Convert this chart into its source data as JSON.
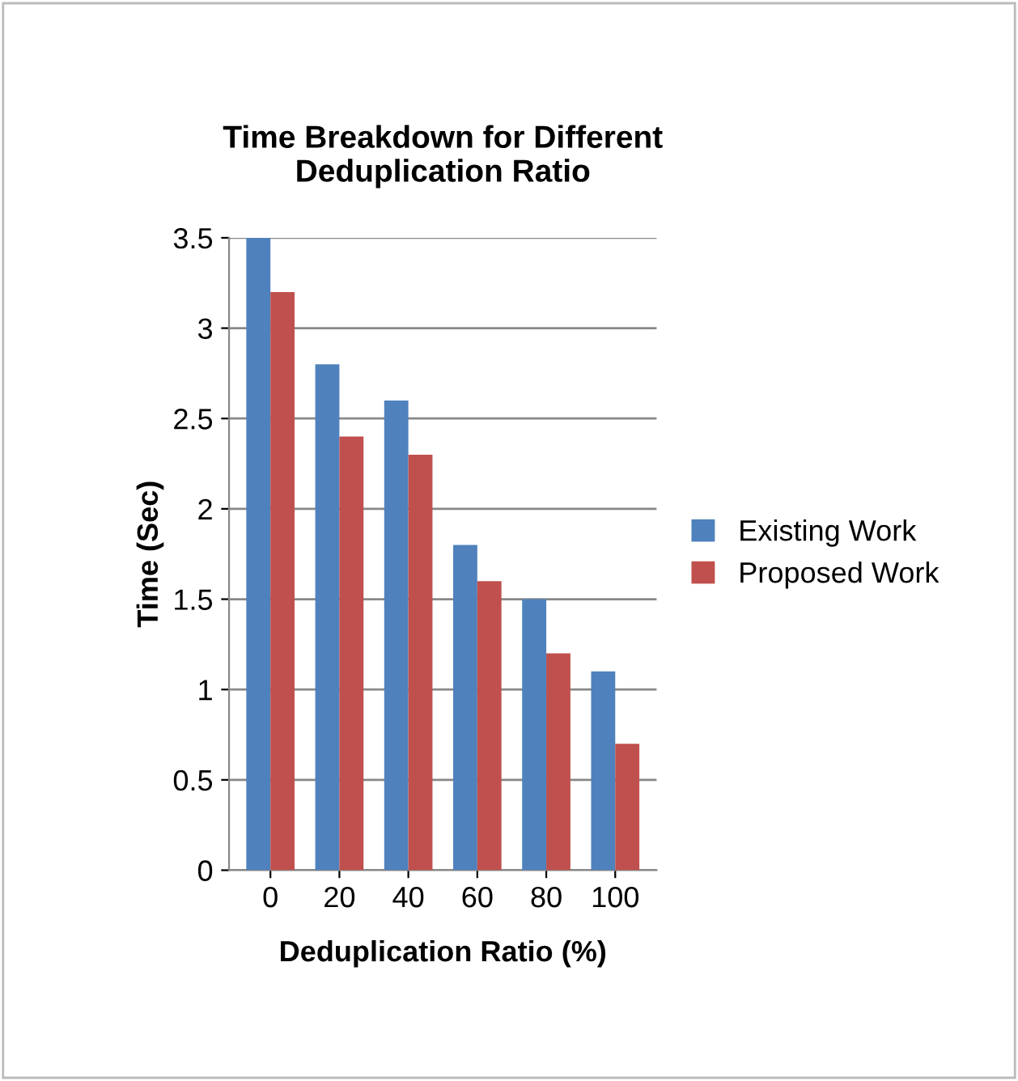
{
  "chart_data": {
    "type": "bar",
    "title": "Time Breakdown for Different\nDeduplication Ratio",
    "xlabel": "Deduplication Ratio (%)",
    "ylabel": "Time (Sec)",
    "categories": [
      "0",
      "20",
      "40",
      "60",
      "80",
      "100"
    ],
    "series": [
      {
        "name": "Existing Work",
        "color": "#4f81bd",
        "values": [
          3.5,
          2.8,
          2.6,
          1.8,
          1.5,
          1.1
        ]
      },
      {
        "name": "Proposed Work",
        "color": "#c0504d",
        "values": [
          3.2,
          2.4,
          2.3,
          1.6,
          1.2,
          0.7
        ]
      }
    ],
    "ylim": [
      0,
      3.5
    ],
    "yticks": [
      0,
      0.5,
      1,
      1.5,
      2,
      2.5,
      3,
      3.5
    ],
    "grid": "y",
    "legend": "right"
  }
}
